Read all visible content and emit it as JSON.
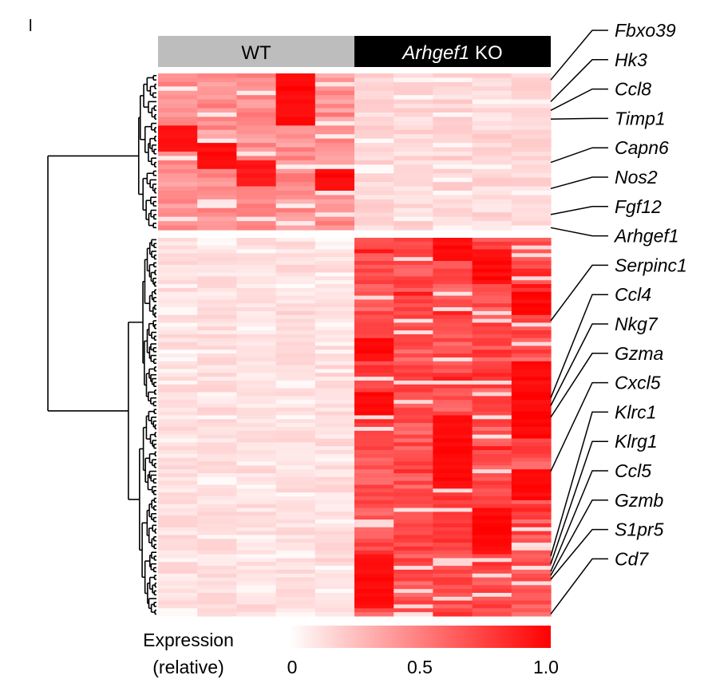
{
  "panel_label": "l",
  "chart_data": {
    "type": "heatmap",
    "groups": [
      {
        "name": "WT",
        "italic_part": "",
        "columns": 5,
        "color": "#bdbdbd",
        "text_color": "#000000"
      },
      {
        "name": " KO",
        "italic_part": "Arhgef1",
        "columns": 5,
        "color": "#000000",
        "text_color": "#ffffff"
      }
    ],
    "clusters": [
      {
        "rows": 36
      },
      {
        "rows": 98
      }
    ],
    "cluster_profiles": [
      {
        "wt": [
          0.35,
          0.55,
          0.25,
          0.45
        ],
        "ko": [
          0.08,
          0.22,
          0.1,
          0.25
        ]
      },
      {
        "wt": [
          0.06,
          0.18,
          0.08,
          0.2
        ],
        "ko": [
          0.55,
          0.8,
          0.4,
          0.95
        ]
      }
    ],
    "highlight_blocks": [
      {
        "cluster": 0,
        "col": 3,
        "row_start": 0,
        "row_end": 12,
        "value": 1.0
      },
      {
        "cluster": 0,
        "col": 0,
        "row_start": 12,
        "row_end": 18,
        "value": 1.0
      },
      {
        "cluster": 0,
        "col": 1,
        "row_start": 16,
        "row_end": 22,
        "value": 1.0
      },
      {
        "cluster": 0,
        "col": 2,
        "row_start": 20,
        "row_end": 26,
        "value": 0.95
      },
      {
        "cluster": 0,
        "col": 4,
        "row_start": 22,
        "row_end": 27,
        "value": 1.0
      },
      {
        "cluster": 1,
        "col": 7,
        "row_start": 0,
        "row_end": 6,
        "value": 1.0
      },
      {
        "cluster": 1,
        "col": 8,
        "row_start": 3,
        "row_end": 12,
        "value": 1.0
      },
      {
        "cluster": 1,
        "col": 9,
        "row_start": 14,
        "row_end": 20,
        "value": 1.0
      },
      {
        "cluster": 1,
        "col": 5,
        "row_start": 26,
        "row_end": 32,
        "value": 1.0
      },
      {
        "cluster": 1,
        "col": 9,
        "row_start": 32,
        "row_end": 52,
        "value": 1.0
      },
      {
        "cluster": 1,
        "col": 5,
        "row_start": 40,
        "row_end": 46,
        "value": 1.0
      },
      {
        "cluster": 1,
        "col": 7,
        "row_start": 46,
        "row_end": 64,
        "value": 1.0
      },
      {
        "cluster": 1,
        "col": 9,
        "row_start": 60,
        "row_end": 68,
        "value": 1.0
      },
      {
        "cluster": 1,
        "col": 8,
        "row_start": 70,
        "row_end": 82,
        "value": 1.0
      },
      {
        "cluster": 1,
        "col": 5,
        "row_start": 82,
        "row_end": 96,
        "value": 1.0
      }
    ],
    "gene_labels": [
      {
        "name": "Fbxo39",
        "target_row": 1
      },
      {
        "name": "Hk3",
        "target_row": 6
      },
      {
        "name": "Ccl8",
        "target_row": 8
      },
      {
        "name": "Timp1",
        "target_row": 10
      },
      {
        "name": "Capn6",
        "target_row": 20
      },
      {
        "name": "Nos2",
        "target_row": 26
      },
      {
        "name": "Fgf12",
        "target_row": 32
      },
      {
        "name": "Arhgef1",
        "target_row": 35
      },
      {
        "name": "Serpinc1",
        "target_row": 57
      },
      {
        "name": "Ccl4",
        "target_row": 77
      },
      {
        "name": "Nkg7",
        "target_row": 79
      },
      {
        "name": "Gzma",
        "target_row": 82
      },
      {
        "name": "Cxcl5",
        "target_row": 96
      },
      {
        "name": "Klrc1",
        "target_row": 118
      },
      {
        "name": "Klrg1",
        "target_row": 120
      },
      {
        "name": "Ccl5",
        "target_row": 122
      },
      {
        "name": "Gzmb",
        "target_row": 123
      },
      {
        "name": "S1pr5",
        "target_row": 124
      },
      {
        "name": "Cd7",
        "target_row": 133
      }
    ],
    "colorbar": {
      "title_line1": "Expression",
      "title_line2": "(relative)",
      "min": 0,
      "max": 1.0,
      "ticks": [
        "0",
        "0.5",
        "1.0"
      ],
      "low_color": "#ffffff",
      "high_color": "#ff0000"
    }
  }
}
